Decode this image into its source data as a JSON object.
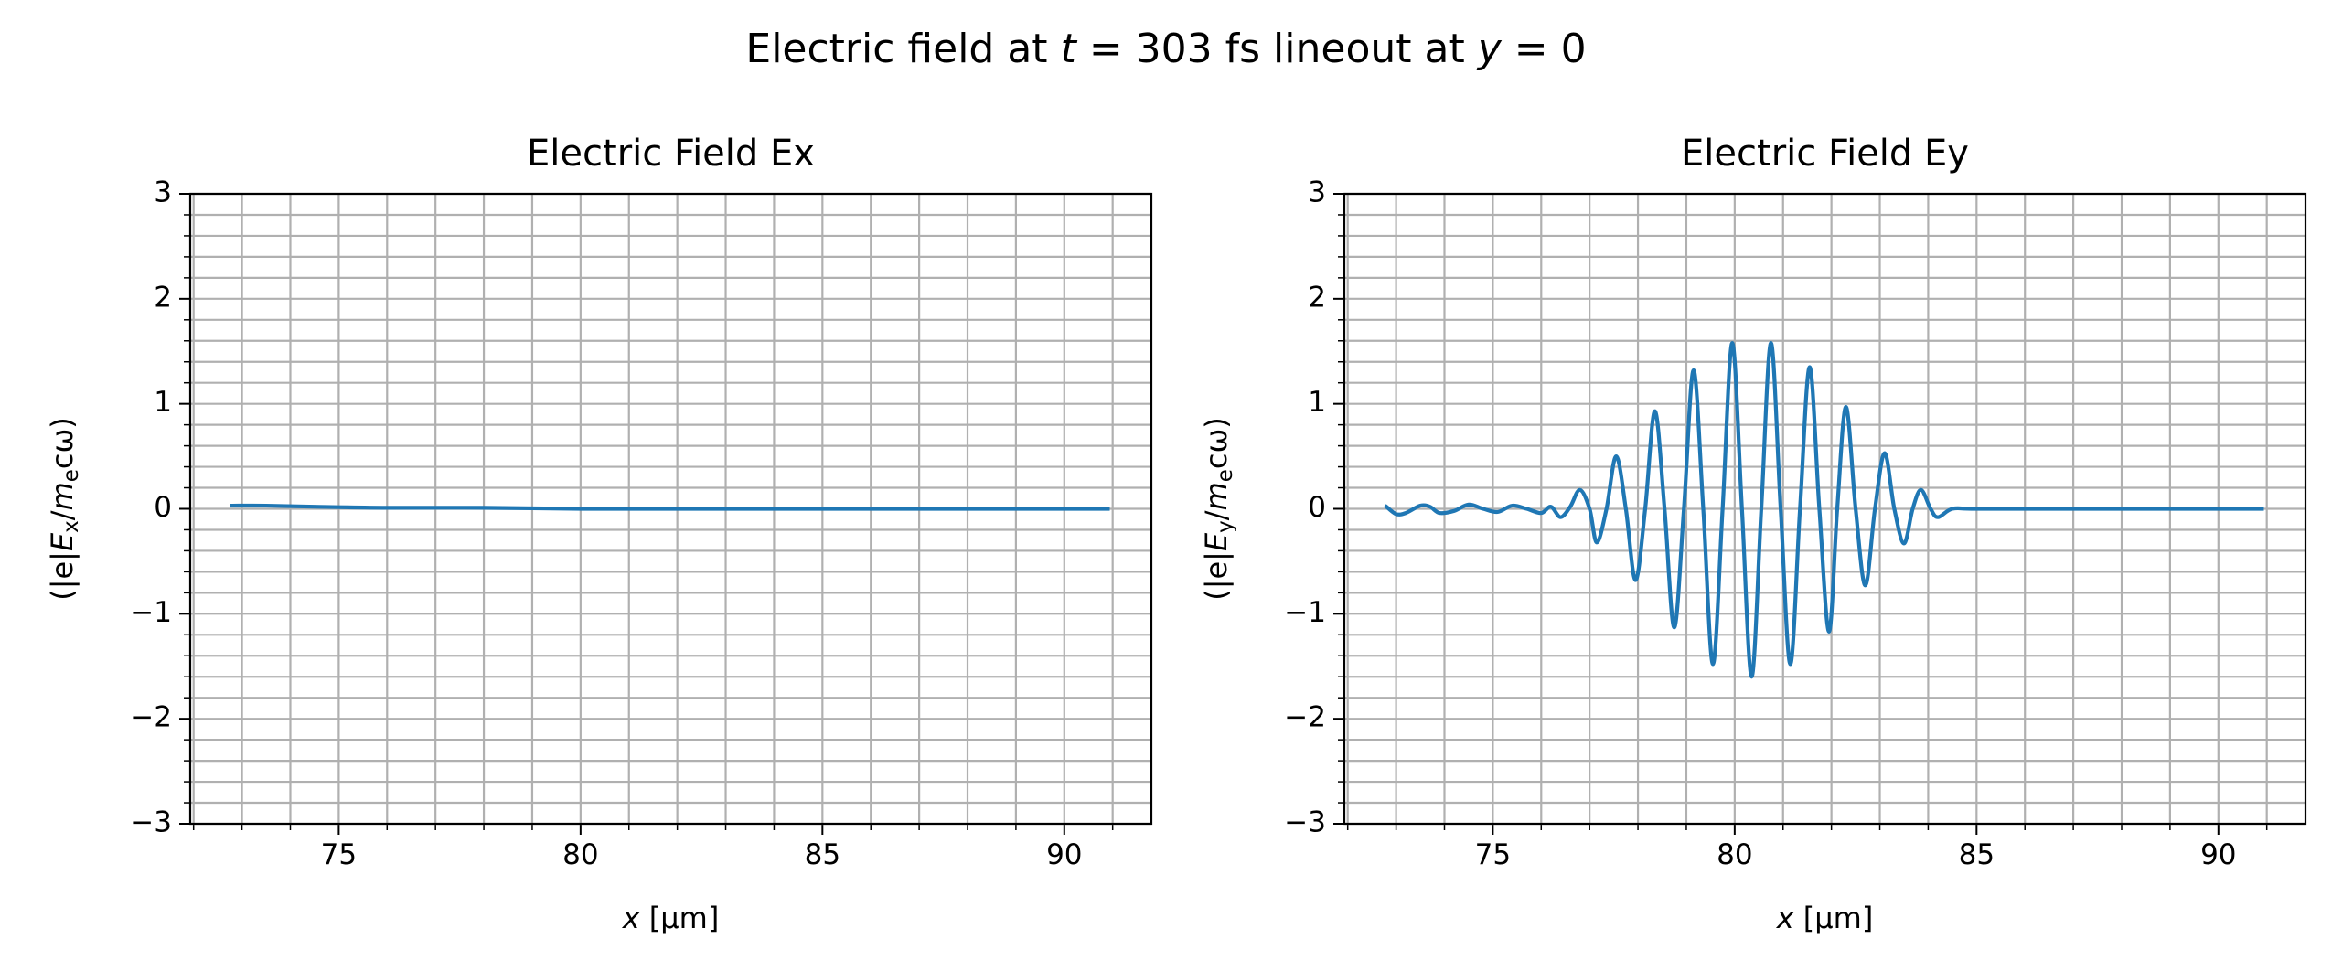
{
  "title": [
    "Electric field at ",
    "t",
    " = 303 fs lineout at ",
    "y",
    " = 0"
  ],
  "chart_data": [
    {
      "type": "line",
      "title": "Electric Field Ex",
      "xlabel": [
        "x",
        " [μm]"
      ],
      "ylabel": [
        "(|e|",
        "E",
        "x",
        "/",
        "m",
        "e",
        "cω)"
      ],
      "x": [
        72.8,
        73.5,
        74.5,
        76,
        78,
        80,
        82,
        84,
        86,
        88,
        90.9
      ],
      "series": [
        {
          "color": "#1f77b4",
          "values": [
            0.03,
            0.03,
            0.02,
            0.01,
            0.01,
            0.0,
            0.0,
            0.0,
            0.0,
            0.0,
            0.0
          ]
        }
      ],
      "xlim": [
        71.93,
        91.8
      ],
      "ylim": [
        -3,
        3
      ],
      "xticks": [
        75,
        80,
        85,
        90
      ],
      "yticks": [
        {
          "value": -3,
          "label": "−3"
        },
        {
          "value": -2,
          "label": "−2"
        },
        {
          "value": -1,
          "label": "−1"
        },
        0,
        1,
        2,
        3
      ],
      "xminorticks": [
        72,
        73,
        74,
        76,
        77,
        78,
        79,
        81,
        82,
        83,
        84,
        86,
        87,
        88,
        89,
        91
      ],
      "yminorticks": [
        -2.8,
        -2.6,
        -2.4,
        -2.2,
        -1.8,
        -1.6,
        -1.4,
        -1.2,
        -0.8,
        -0.6,
        -0.4,
        -0.2,
        0.2,
        0.4,
        0.6,
        0.8,
        1.2,
        1.4,
        1.6,
        1.8,
        2.2,
        2.4,
        2.6,
        2.8
      ],
      "grid": true
    },
    {
      "type": "line",
      "title": "Electric Field Ey",
      "xlabel": [
        "x",
        " [μm]"
      ],
      "ylabel": [
        "(|e|",
        "E",
        "y",
        "/",
        "m",
        "e",
        "cω)"
      ],
      "x": [
        72.8,
        73.0,
        73.2,
        73.5,
        73.7,
        73.9,
        74.2,
        74.5,
        74.8,
        75.1,
        75.4,
        75.7,
        76.0,
        76.2,
        76.4,
        76.6,
        76.8,
        77.0,
        77.15,
        77.35,
        77.55,
        77.75,
        77.95,
        78.15,
        78.35,
        78.55,
        78.75,
        78.95,
        79.15,
        79.35,
        79.55,
        79.75,
        79.95,
        80.15,
        80.35,
        80.55,
        80.75,
        80.95,
        81.15,
        81.35,
        81.55,
        81.75,
        81.95,
        82.12,
        82.3,
        82.5,
        82.7,
        82.9,
        83.1,
        83.3,
        83.5,
        83.68,
        83.85,
        84.05,
        84.2,
        84.5,
        85.0,
        87.0,
        90.9
      ],
      "series": [
        {
          "color": "#1f77b4",
          "values": [
            0.02,
            -0.05,
            -0.04,
            0.03,
            0.02,
            -0.04,
            -0.02,
            0.04,
            0.0,
            -0.03,
            0.03,
            0.0,
            -0.04,
            0.02,
            -0.08,
            0.02,
            0.18,
            0.0,
            -0.32,
            0.0,
            0.5,
            0.0,
            -0.68,
            0.0,
            0.93,
            0.0,
            -1.13,
            0.0,
            1.32,
            0.0,
            -1.48,
            0.0,
            1.58,
            0.0,
            -1.6,
            0.0,
            1.58,
            0.0,
            -1.48,
            0.0,
            1.35,
            0.0,
            -1.17,
            0.0,
            0.97,
            0.0,
            -0.73,
            0.0,
            0.53,
            0.0,
            -0.33,
            0.0,
            0.18,
            0.0,
            -0.08,
            0.0,
            0.0,
            0.0,
            0.0
          ]
        }
      ],
      "xlim": [
        71.93,
        91.8
      ],
      "ylim": [
        -3,
        3
      ],
      "xticks": [
        75,
        80,
        85,
        90
      ],
      "yticks": [
        {
          "value": -3,
          "label": "−3"
        },
        {
          "value": -2,
          "label": "−2"
        },
        {
          "value": -1,
          "label": "−1"
        },
        0,
        1,
        2,
        3
      ],
      "xminorticks": [
        72,
        73,
        74,
        76,
        77,
        78,
        79,
        81,
        82,
        83,
        84,
        86,
        87,
        88,
        89,
        91
      ],
      "yminorticks": [
        -2.8,
        -2.6,
        -2.4,
        -2.2,
        -1.8,
        -1.6,
        -1.4,
        -1.2,
        -0.8,
        -0.6,
        -0.4,
        -0.2,
        0.2,
        0.4,
        0.6,
        0.8,
        1.2,
        1.4,
        1.6,
        1.8,
        2.2,
        2.4,
        2.6,
        2.8
      ],
      "grid": true
    }
  ]
}
